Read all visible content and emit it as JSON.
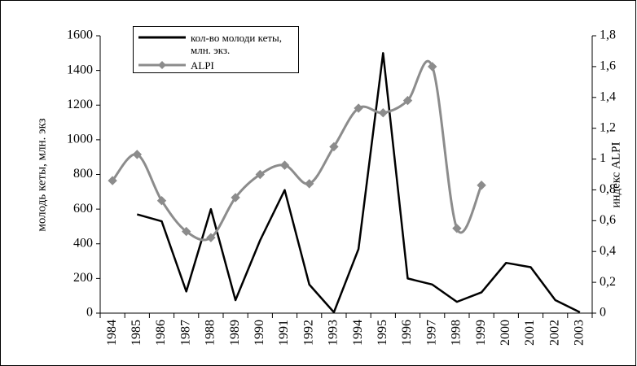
{
  "chart_data": {
    "type": "line",
    "ylabel": "молодь кеты, млн. экз",
    "y2label": "индекс ALPI",
    "categories": [
      "1984",
      "1985",
      "1986",
      "1987",
      "1988",
      "1989",
      "1990",
      "1991",
      "1992",
      "1993",
      "1994",
      "1995",
      "1996",
      "1997",
      "1998",
      "1999",
      "2000",
      "2001",
      "2002",
      "2003"
    ],
    "series": [
      {
        "name": "кол-во молоди кеты, млн. экз.",
        "color": "#000000",
        "axis": "y",
        "values": [
          null,
          570,
          530,
          125,
          600,
          75,
          420,
          710,
          165,
          5,
          370,
          1500,
          200,
          165,
          65,
          120,
          290,
          265,
          75,
          5
        ]
      },
      {
        "name": "ALPI",
        "color": "#8c8c8c",
        "axis": "y2",
        "marker": "diamond",
        "values": [
          0.86,
          1.03,
          0.73,
          0.53,
          0.49,
          0.75,
          0.9,
          0.96,
          0.84,
          1.08,
          1.33,
          1.3,
          1.38,
          1.6,
          0.55,
          0.83,
          null,
          null,
          null,
          null
        ]
      }
    ],
    "ylim": [
      0,
      1600
    ],
    "yticks": [
      0,
      200,
      400,
      600,
      800,
      1000,
      1200,
      1400,
      1600
    ],
    "y2lim": [
      0,
      1.8
    ],
    "y2ticks": [
      0,
      {
        "value": 0.2,
        "label": "0,2"
      },
      {
        "value": 0.4,
        "label": "0,4"
      },
      {
        "value": 0.6,
        "label": "0,6"
      },
      {
        "value": 0.8,
        "label": "0,8"
      },
      1,
      {
        "value": 1.2,
        "label": "1,2"
      },
      {
        "value": 1.4,
        "label": "1,4"
      },
      {
        "value": 1.6,
        "label": "1,6"
      },
      {
        "value": 1.8,
        "label": "1,8"
      }
    ]
  }
}
